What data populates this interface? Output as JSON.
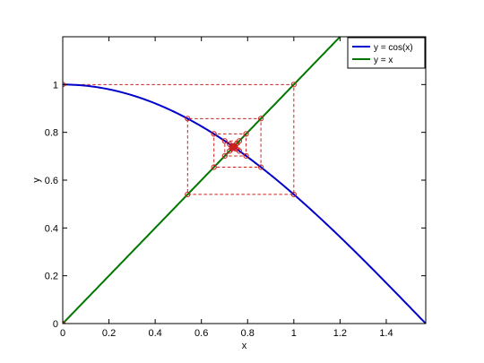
{
  "chart_data": {
    "type": "line",
    "title": "",
    "xlabel": "x",
    "ylabel": "y",
    "xlim": [
      0,
      1.5708
    ],
    "ylim": [
      0,
      1.2
    ],
    "xticks": [
      0,
      0.2,
      0.4,
      0.6,
      0.8,
      1,
      1.2,
      1.4
    ],
    "xtick_labels": [
      "0",
      "0.2",
      "0.4",
      "0.6",
      "0.8",
      "1",
      "1.2",
      "1.4"
    ],
    "yticks": [
      0,
      0.2,
      0.4,
      0.6,
      0.8,
      1
    ],
    "ytick_labels": [
      "0",
      "0.2",
      "0.4",
      "0.6",
      "0.8",
      "1"
    ],
    "grid": false,
    "legend_position": "top-right",
    "series": [
      {
        "name": "y = cos(x)",
        "function": "cos",
        "color": "#0000cc"
      },
      {
        "name": "y = x",
        "function": "identity",
        "color": "#007700"
      }
    ],
    "cobweb": {
      "color": "#cc2222",
      "style": "dashed",
      "x0": 0,
      "iterations": 24,
      "marker": "circle"
    }
  }
}
